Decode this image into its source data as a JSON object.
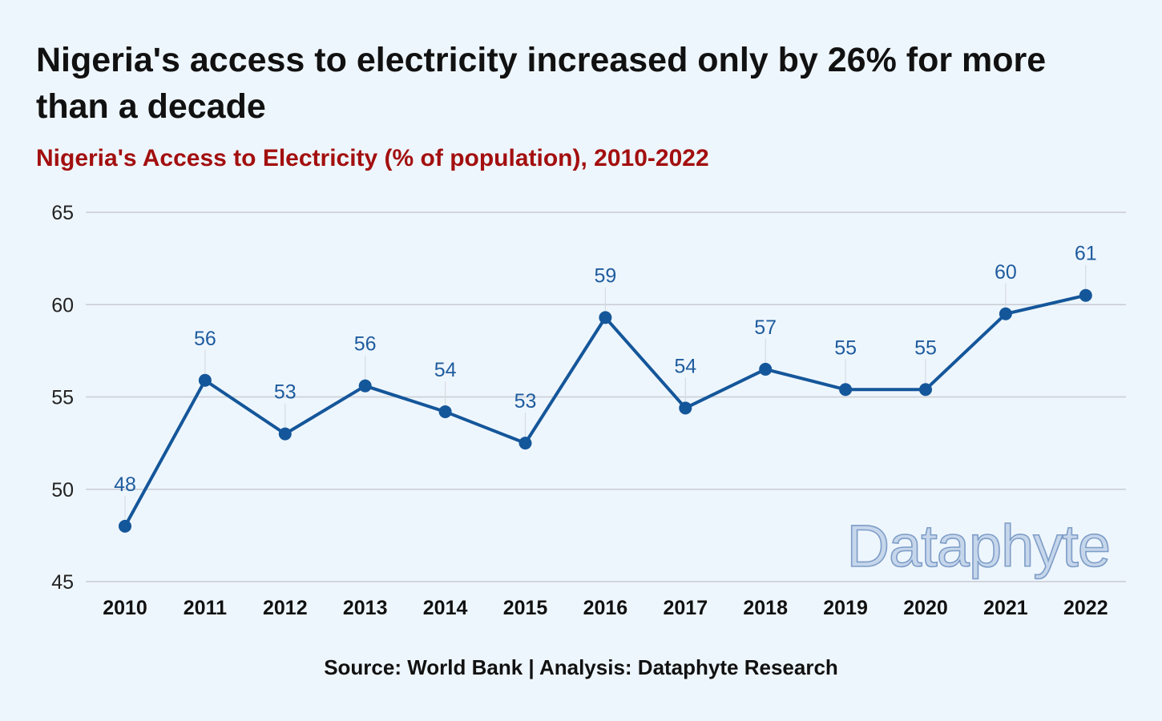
{
  "title": "Nigeria's access to electricity increased only by 26% for more than a decade",
  "subtitle": "Nigeria's Access to Electricity (% of population), 2010-2022",
  "source": "Source: World Bank | Analysis: Dataphyte Research",
  "watermark": "Dataphyte",
  "colors": {
    "background": "#eef6fd",
    "title": "#111111",
    "subtitle": "#a30f0f",
    "line": "#14569a",
    "data_label": "#1f5c9e",
    "grid": "#c8ccd2"
  },
  "chart_data": {
    "type": "line",
    "title": "Nigeria's Access to Electricity (% of population), 2010-2022",
    "xlabel": "",
    "ylabel": "",
    "categories": [
      "2010",
      "2011",
      "2012",
      "2013",
      "2014",
      "2015",
      "2016",
      "2017",
      "2018",
      "2019",
      "2020",
      "2021",
      "2022"
    ],
    "values": [
      48.0,
      55.9,
      53.0,
      55.6,
      54.2,
      52.5,
      59.3,
      54.4,
      56.5,
      55.4,
      55.4,
      59.5,
      60.5
    ],
    "data_labels": [
      "48",
      "56",
      "53",
      "56",
      "54",
      "53",
      "59",
      "54",
      "57",
      "55",
      "55",
      "60",
      "61"
    ],
    "ylim": [
      45,
      65
    ],
    "yticks": [
      45,
      50,
      55,
      60,
      65
    ],
    "grid": "horizontal",
    "legend": "none"
  }
}
